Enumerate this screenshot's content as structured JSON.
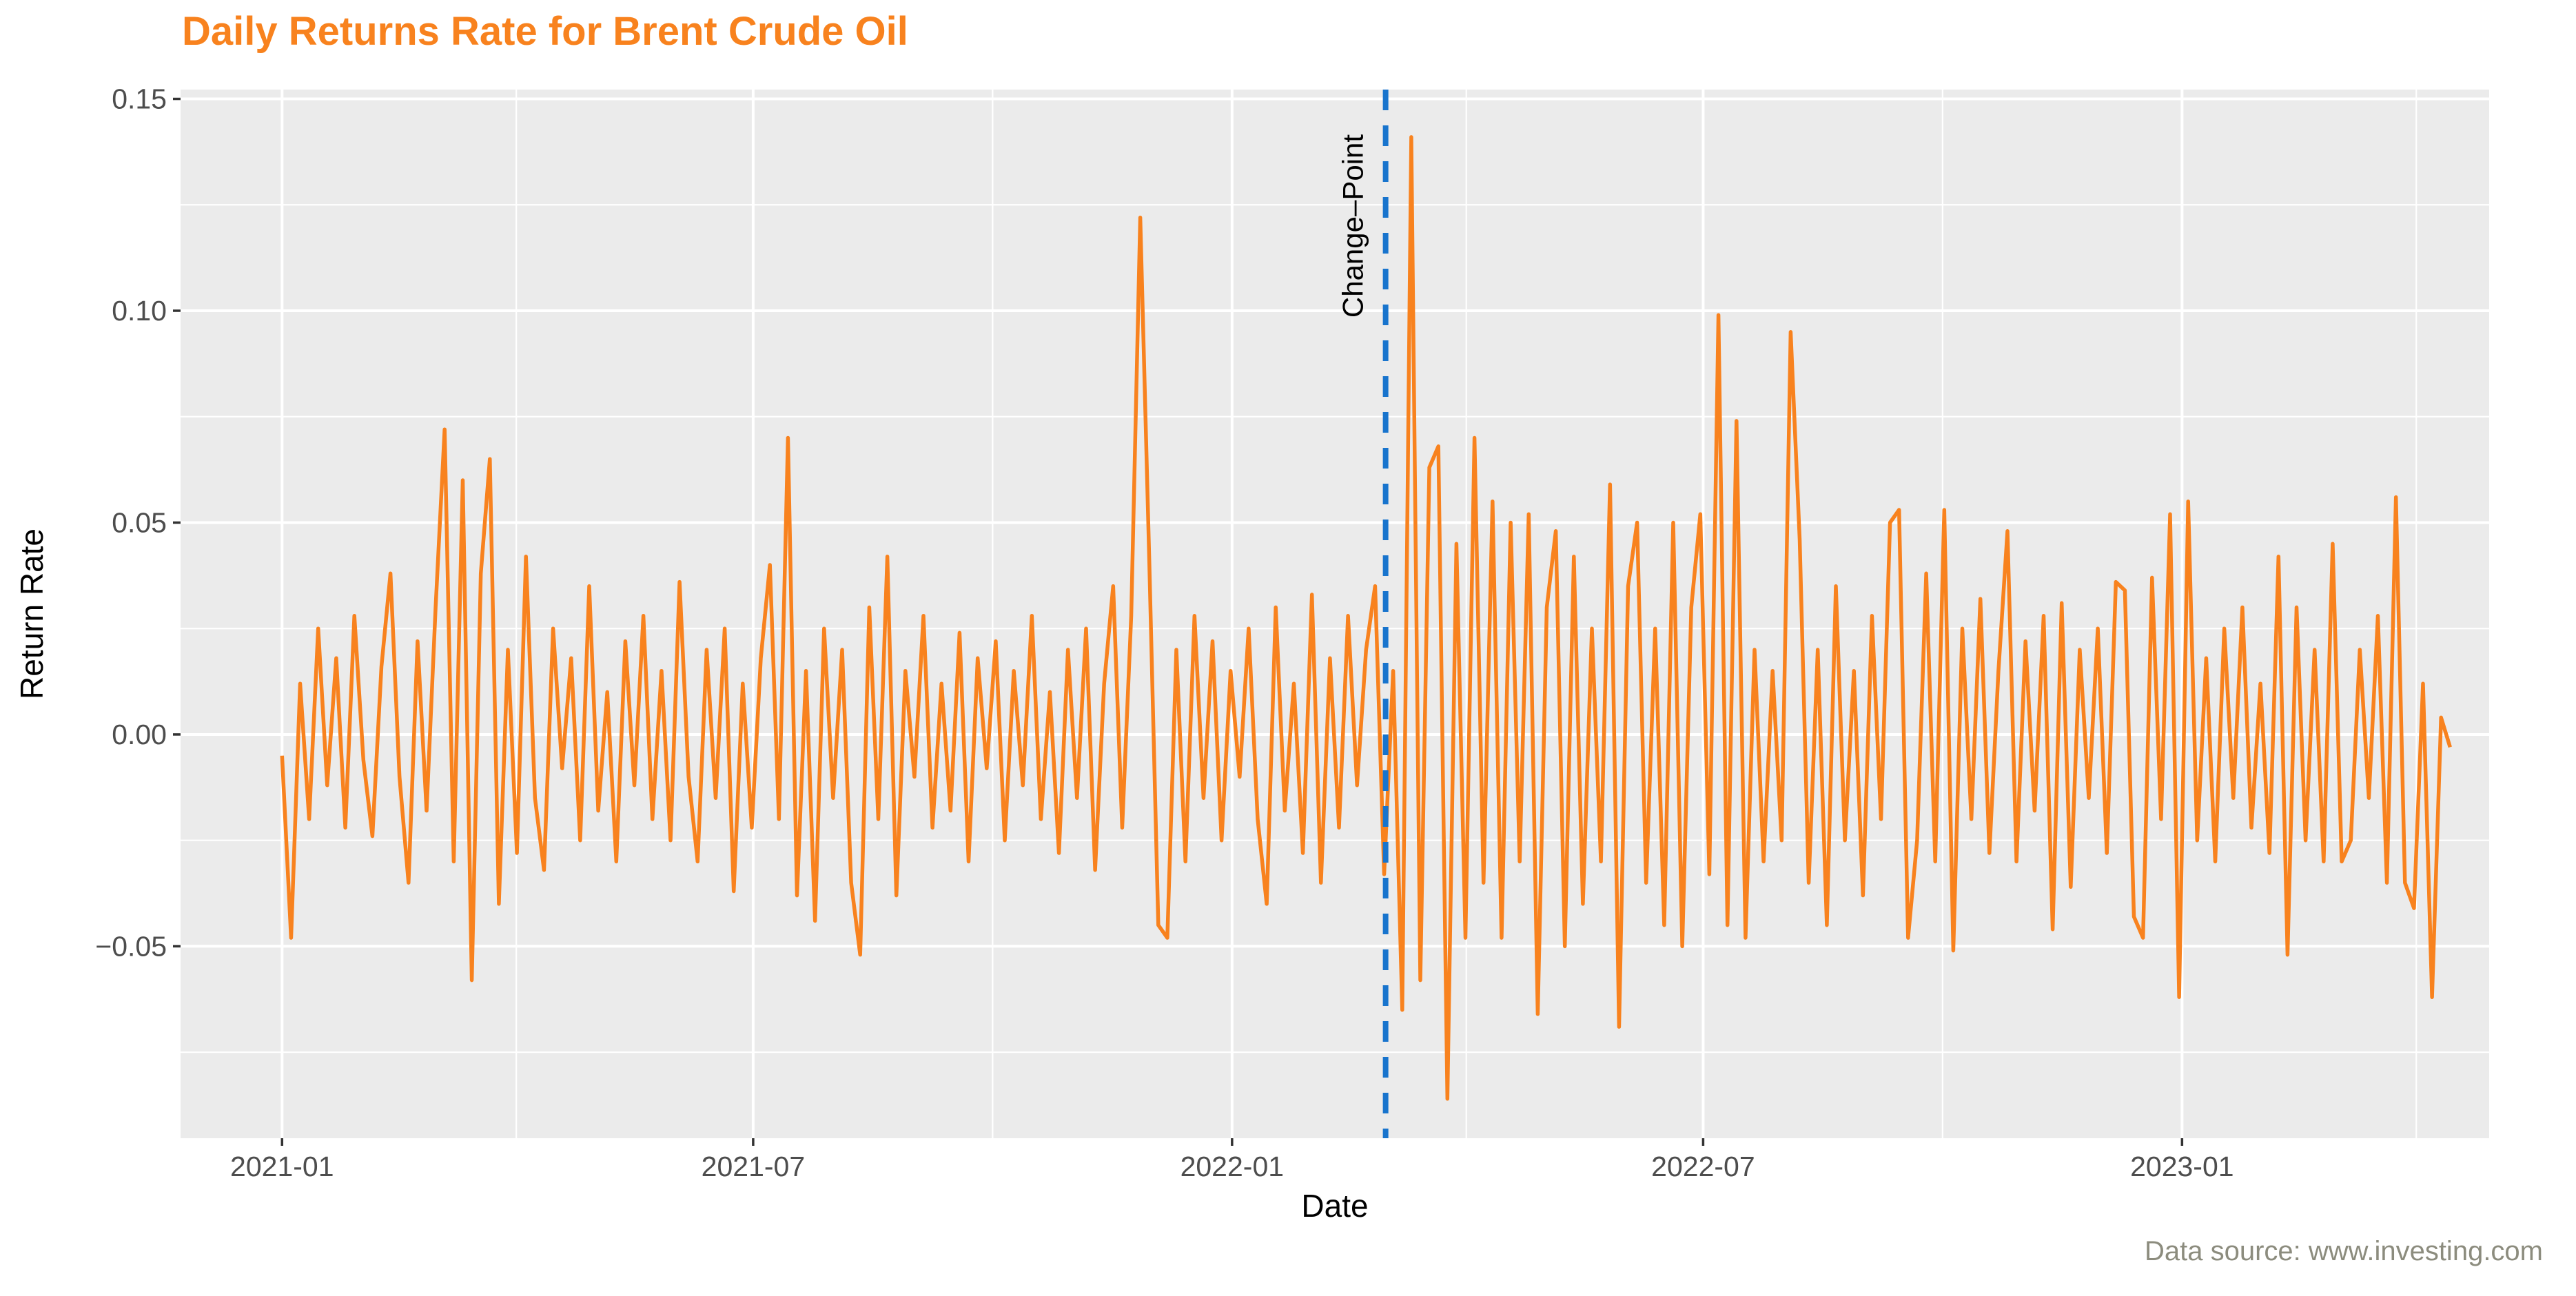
{
  "header": {
    "title": "Daily Returns Rate for Brent Crude Oil",
    "title_color": "#F8821E"
  },
  "footer": {
    "caption": "Data source: www.investing.com",
    "color": "#8C8C7E"
  },
  "chart_data": {
    "type": "line",
    "title": "Daily Returns Rate for Brent Crude Oil",
    "xlabel": "Date",
    "ylabel": "Return Rate",
    "legend_position": "none",
    "grid": true,
    "panel_background": "#EBEBEB",
    "gridline_color": "#FFFFFF",
    "axis_text_color": "#4D4D4D",
    "axis_title_color": "#000000",
    "tick_mark_color": "#333333",
    "x_domain": [
      "2020-11-23",
      "2023-04-29"
    ],
    "y_domain": [
      -0.0953,
      0.1522
    ],
    "x_ticks": [
      {
        "date": "2021-01-01",
        "label": "2021-01"
      },
      {
        "date": "2021-07-01",
        "label": "2021-07"
      },
      {
        "date": "2022-01-01",
        "label": "2022-01"
      },
      {
        "date": "2022-07-01",
        "label": "2022-07"
      },
      {
        "date": "2023-01-01",
        "label": "2023-01"
      }
    ],
    "x_minor_ticks": [
      "2021-04-01",
      "2021-10-01",
      "2022-04-01",
      "2022-10-01",
      "2023-04-01"
    ],
    "y_ticks": [
      {
        "value": 0.15,
        "label": "0.15"
      },
      {
        "value": 0.1,
        "label": "0.10"
      },
      {
        "value": 0.05,
        "label": "0.05"
      },
      {
        "value": 0.0,
        "label": "0.00"
      },
      {
        "value": -0.05,
        "label": "−0.05"
      }
    ],
    "y_minor_ticks": [
      0.125,
      0.075,
      0.025,
      -0.025,
      -0.075
    ],
    "annotations": {
      "change_point": {
        "date": "2022-03-01",
        "label": "Change–Point",
        "line_color": "#1874CD",
        "line_style": "dashed",
        "label_color": "#000000",
        "label_value_center": 0.12
      }
    },
    "series": [
      {
        "name": "brent_daily_return",
        "color": "#F8821E",
        "start_date": "2021-01-01",
        "end_date": "2023-04-14",
        "values": [
          -0.005,
          -0.048,
          0.012,
          -0.02,
          0.025,
          -0.012,
          0.018,
          -0.022,
          0.028,
          -0.006,
          -0.024,
          0.016,
          0.038,
          -0.01,
          -0.035,
          0.022,
          -0.018,
          0.03,
          0.072,
          -0.03,
          0.06,
          -0.058,
          0.038,
          0.065,
          -0.04,
          0.02,
          -0.028,
          0.042,
          -0.015,
          -0.032,
          0.025,
          -0.008,
          0.018,
          -0.025,
          0.035,
          -0.018,
          0.01,
          -0.03,
          0.022,
          -0.012,
          0.028,
          -0.02,
          0.015,
          -0.025,
          0.036,
          -0.01,
          -0.03,
          0.02,
          -0.015,
          0.025,
          -0.037,
          0.012,
          -0.022,
          0.018,
          0.04,
          -0.02,
          0.07,
          -0.038,
          0.015,
          -0.044,
          0.025,
          -0.015,
          0.02,
          -0.035,
          -0.052,
          0.03,
          -0.02,
          0.042,
          -0.038,
          0.015,
          -0.01,
          0.028,
          -0.022,
          0.012,
          -0.018,
          0.024,
          -0.03,
          0.018,
          -0.008,
          0.022,
          -0.025,
          0.015,
          -0.012,
          0.028,
          -0.02,
          0.01,
          -0.028,
          0.02,
          -0.015,
          0.025,
          -0.032,
          0.012,
          0.035,
          -0.022,
          0.028,
          0.122,
          0.041,
          -0.045,
          -0.048,
          0.02,
          -0.03,
          0.028,
          -0.015,
          0.022,
          -0.025,
          0.015,
          -0.01,
          0.025,
          -0.02,
          -0.04,
          0.03,
          -0.018,
          0.012,
          -0.028,
          0.033,
          -0.035,
          0.018,
          -0.022,
          0.028,
          -0.012,
          0.02,
          0.035,
          -0.033,
          0.015,
          -0.065,
          0.141,
          -0.058,
          0.063,
          0.068,
          -0.086,
          0.045,
          -0.048,
          0.07,
          -0.035,
          0.055,
          -0.048,
          0.05,
          -0.03,
          0.052,
          -0.066,
          0.03,
          0.048,
          -0.05,
          0.042,
          -0.04,
          0.025,
          -0.03,
          0.059,
          -0.069,
          0.035,
          0.05,
          -0.035,
          0.025,
          -0.045,
          0.05,
          -0.05,
          0.03,
          0.052,
          -0.033,
          0.099,
          -0.045,
          0.074,
          -0.048,
          0.02,
          -0.03,
          0.015,
          -0.025,
          0.095,
          0.046,
          -0.035,
          0.02,
          -0.045,
          0.035,
          -0.025,
          0.015,
          -0.038,
          0.028,
          -0.02,
          0.05,
          0.053,
          -0.048,
          -0.025,
          0.038,
          -0.03,
          0.053,
          -0.051,
          0.025,
          -0.02,
          0.032,
          -0.028,
          0.015,
          0.048,
          -0.03,
          0.022,
          -0.018,
          0.028,
          -0.046,
          0.031,
          -0.036,
          0.02,
          -0.015,
          0.025,
          -0.028,
          0.036,
          0.034,
          -0.043,
          -0.048,
          0.037,
          -0.02,
          0.052,
          -0.062,
          0.055,
          -0.025,
          0.018,
          -0.03,
          0.025,
          -0.015,
          0.03,
          -0.022,
          0.012,
          -0.028,
          0.042,
          -0.052,
          0.03,
          -0.025,
          0.02,
          -0.03,
          0.045,
          -0.03,
          -0.025,
          0.02,
          -0.015,
          0.028,
          -0.035,
          0.056,
          -0.035,
          -0.041,
          0.012,
          -0.062,
          0.004,
          -0.003
        ]
      }
    ]
  }
}
